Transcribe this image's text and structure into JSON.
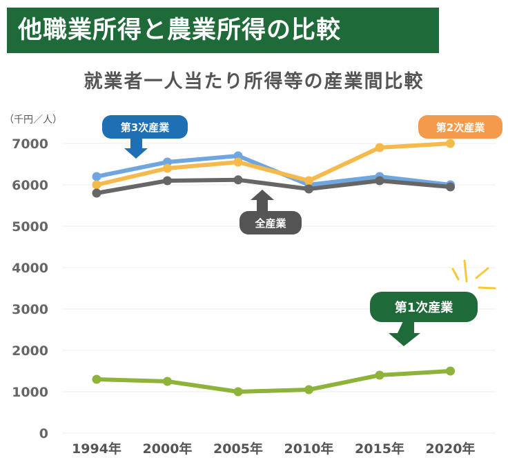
{
  "banner_title": "他職業所得と農業所得の比較",
  "chart_data": {
    "type": "line",
    "title": "就業者一人当たり所得等の産業間比較",
    "ylabel": "（千円／人）",
    "categories": [
      "1994年",
      "2000年",
      "2005年",
      "2010年",
      "2015年",
      "2020年"
    ],
    "ylim": [
      0,
      7000
    ],
    "yticks": [
      0,
      1000,
      2000,
      3000,
      4000,
      5000,
      6000,
      7000
    ],
    "grid": true,
    "series": [
      {
        "name": "第3次産業",
        "color": "#6fa6e0",
        "values": [
          6200,
          6550,
          6700,
          6000,
          6200,
          6000
        ]
      },
      {
        "name": "第2次産業",
        "color": "#f6b94c",
        "values": [
          6000,
          6400,
          6550,
          6100,
          6900,
          7000
        ]
      },
      {
        "name": "全産業",
        "color": "#666666",
        "values": [
          5800,
          6100,
          6120,
          5900,
          6100,
          5950
        ]
      },
      {
        "name": "第1次産業",
        "color": "#8db33a",
        "values": [
          1300,
          1250,
          1000,
          1050,
          1400,
          1500
        ]
      }
    ],
    "callouts": {
      "tertiary": {
        "label": "第3次産業",
        "color": "#1f6fb5"
      },
      "secondary": {
        "label": "第2次産業",
        "color": "#f39a4c"
      },
      "all": {
        "label": "全産業",
        "color": "#555555"
      },
      "primary": {
        "label": "第1次産業",
        "color": "#1f6a39"
      }
    }
  }
}
